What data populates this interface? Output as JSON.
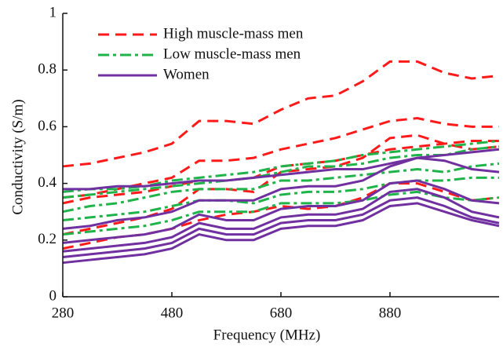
{
  "chart_data": {
    "type": "line",
    "x_label": "Frequency (MHz)",
    "y_label": "Conductivity (S/m)",
    "x": [
      280,
      330,
      380,
      430,
      480,
      530,
      580,
      630,
      680,
      730,
      780,
      830,
      880,
      930,
      980,
      1030,
      1080
    ],
    "xlim": [
      280,
      1080
    ],
    "xticks": [
      280,
      480,
      680,
      880
    ],
    "ylim": [
      0,
      1
    ],
    "yticks": [
      0,
      0.2,
      0.4,
      0.6,
      0.8,
      1
    ],
    "legend": "upper left",
    "series": [
      {
        "name": "High muscle-mass men",
        "color": "#ff1a1a",
        "linestyle": "dashed",
        "lines": [
          {
            "values": [
              0.46,
              0.47,
              0.49,
              0.51,
              0.54,
              0.62,
              0.62,
              0.61,
              0.66,
              0.7,
              0.71,
              0.76,
              0.83,
              0.83,
              0.79,
              0.77,
              0.78
            ]
          },
          {
            "values": [
              0.35,
              0.36,
              0.38,
              0.4,
              0.42,
              0.48,
              0.48,
              0.49,
              0.52,
              0.54,
              0.56,
              0.59,
              0.62,
              0.63,
              0.61,
              0.6,
              0.6
            ]
          },
          {
            "values": [
              0.33,
              0.35,
              0.36,
              0.37,
              0.39,
              0.41,
              0.41,
              0.42,
              0.46,
              0.47,
              0.48,
              0.5,
              0.52,
              0.53,
              0.54,
              0.55,
              0.55
            ]
          },
          {
            "values": [
              0.22,
              0.24,
              0.26,
              0.28,
              0.31,
              0.38,
              0.38,
              0.37,
              0.44,
              0.45,
              0.46,
              0.49,
              0.56,
              0.57,
              0.54,
              0.52,
              0.53
            ]
          },
          {
            "values": [
              0.17,
              0.19,
              0.21,
              0.22,
              0.24,
              0.27,
              0.29,
              0.3,
              0.32,
              0.31,
              0.32,
              0.35,
              0.4,
              0.4,
              0.37,
              0.34,
              0.35
            ]
          }
        ]
      },
      {
        "name": "Low muscle-mass men",
        "color": "#1fb34a",
        "linestyle": "dashdot",
        "lines": [
          {
            "values": [
              0.37,
              0.38,
              0.38,
              0.39,
              0.41,
              0.42,
              0.43,
              0.44,
              0.46,
              0.47,
              0.48,
              0.5,
              0.51,
              0.52,
              0.53,
              0.54,
              0.55
            ]
          },
          {
            "values": [
              0.35,
              0.36,
              0.37,
              0.38,
              0.39,
              0.4,
              0.41,
              0.42,
              0.44,
              0.46,
              0.46,
              0.47,
              0.49,
              0.5,
              0.5,
              0.52,
              0.53
            ]
          },
          {
            "values": [
              0.3,
              0.32,
              0.33,
              0.35,
              0.37,
              0.38,
              0.38,
              0.38,
              0.41,
              0.41,
              0.42,
              0.43,
              0.44,
              0.45,
              0.44,
              0.46,
              0.47
            ]
          },
          {
            "values": [
              0.27,
              0.28,
              0.29,
              0.3,
              0.32,
              0.34,
              0.34,
              0.33,
              0.36,
              0.37,
              0.37,
              0.38,
              0.4,
              0.41,
              0.41,
              0.42,
              0.42
            ]
          },
          {
            "values": [
              0.22,
              0.23,
              0.24,
              0.25,
              0.27,
              0.3,
              0.3,
              0.3,
              0.33,
              0.33,
              0.33,
              0.34,
              0.36,
              0.37,
              0.35,
              0.34,
              0.35
            ]
          }
        ]
      },
      {
        "name": "Women",
        "color": "#7030a0",
        "linestyle": "solid",
        "lines": [
          {
            "values": [
              0.38,
              0.38,
              0.39,
              0.39,
              0.4,
              0.41,
              0.41,
              0.42,
              0.43,
              0.44,
              0.45,
              0.45,
              0.47,
              0.49,
              0.5,
              0.51,
              0.52
            ]
          },
          {
            "values": [
              0.24,
              0.25,
              0.27,
              0.28,
              0.3,
              0.34,
              0.34,
              0.34,
              0.38,
              0.39,
              0.39,
              0.41,
              0.46,
              0.49,
              0.48,
              0.45,
              0.44
            ]
          },
          {
            "values": [
              0.19,
              0.2,
              0.21,
              0.22,
              0.24,
              0.29,
              0.27,
              0.27,
              0.31,
              0.32,
              0.32,
              0.34,
              0.4,
              0.41,
              0.38,
              0.34,
              0.33
            ]
          },
          {
            "values": [
              0.16,
              0.17,
              0.18,
              0.19,
              0.21,
              0.26,
              0.24,
              0.24,
              0.28,
              0.29,
              0.29,
              0.31,
              0.37,
              0.38,
              0.35,
              0.3,
              0.28
            ]
          },
          {
            "values": [
              0.14,
              0.15,
              0.16,
              0.17,
              0.19,
              0.24,
              0.22,
              0.22,
              0.26,
              0.27,
              0.27,
              0.29,
              0.34,
              0.35,
              0.32,
              0.28,
              0.26
            ]
          },
          {
            "values": [
              0.12,
              0.13,
              0.14,
              0.15,
              0.17,
              0.22,
              0.2,
              0.2,
              0.24,
              0.25,
              0.25,
              0.27,
              0.32,
              0.33,
              0.3,
              0.27,
              0.25
            ]
          }
        ]
      }
    ]
  }
}
